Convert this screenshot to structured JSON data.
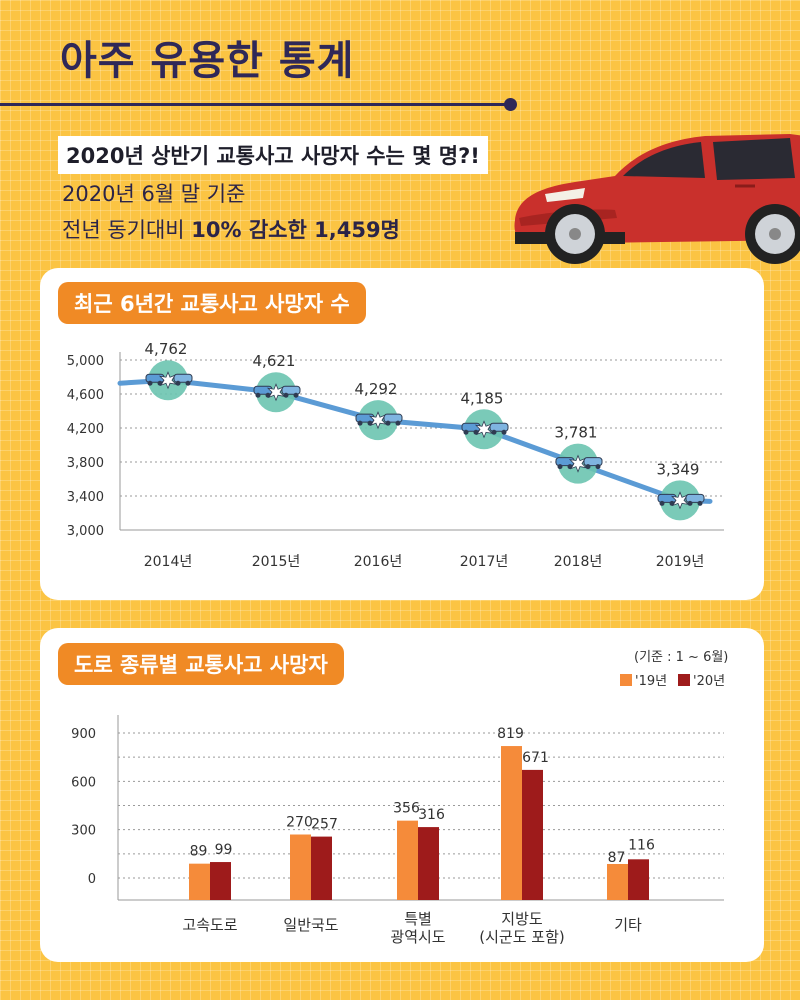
{
  "header": {
    "title": "아주 유용한 통계",
    "headline": "2020년 상반기 교통사고 사망자 수는 몇 명?!",
    "date_line": "2020년 6월 말 기준",
    "summary_prefix": "전년 동기대비 ",
    "summary_bold": "10% 감소한 1,459명"
  },
  "colors": {
    "background": "#fbc443",
    "navy": "#2f2858",
    "orange": "#f08a25",
    "bar_2019": "#f58b3a",
    "bar_2020": "#9e1b1b",
    "line": "#5b9bd5",
    "marker": "#6cc4b0",
    "car_body": "#c9302c"
  },
  "icons": [
    "car-illustration",
    "car-crash-icon"
  ],
  "chart1": {
    "label": "최근 6년간 교통사고 사망자 수"
  },
  "chart2": {
    "label": "도로 종류별 교통사고 사망자",
    "note": "(기준 : 1 ~ 6월)"
  },
  "chart_data": [
    {
      "type": "line",
      "title": "최근 6년간 교통사고 사망자 수",
      "categories": [
        "2014년",
        "2015년",
        "2016년",
        "2017년",
        "2018년",
        "2019년"
      ],
      "values": [
        4762,
        4621,
        4292,
        4185,
        3781,
        3349
      ],
      "value_labels": [
        "4,762",
        "4,621",
        "4,292",
        "4,185",
        "3,781",
        "3,349"
      ],
      "yticks": [
        "3,000",
        "3,400",
        "3,800",
        "4,200",
        "4,600",
        "5,000"
      ],
      "ylim": [
        3000,
        5000
      ],
      "grid": true
    },
    {
      "type": "bar",
      "title": "도로 종류별 교통사고 사망자",
      "categories": [
        "고속도로",
        "일반국도",
        "특별\n광역시도",
        "지방도\n(시군도 포함)",
        "기타"
      ],
      "series": [
        {
          "name": "'19년",
          "values": [
            89,
            270,
            356,
            819,
            87
          ]
        },
        {
          "name": "'20년",
          "values": [
            99,
            257,
            316,
            671,
            116
          ]
        }
      ],
      "yticks": [
        "0",
        "300",
        "600",
        "900"
      ],
      "legend": "top-right",
      "grid": true
    }
  ]
}
